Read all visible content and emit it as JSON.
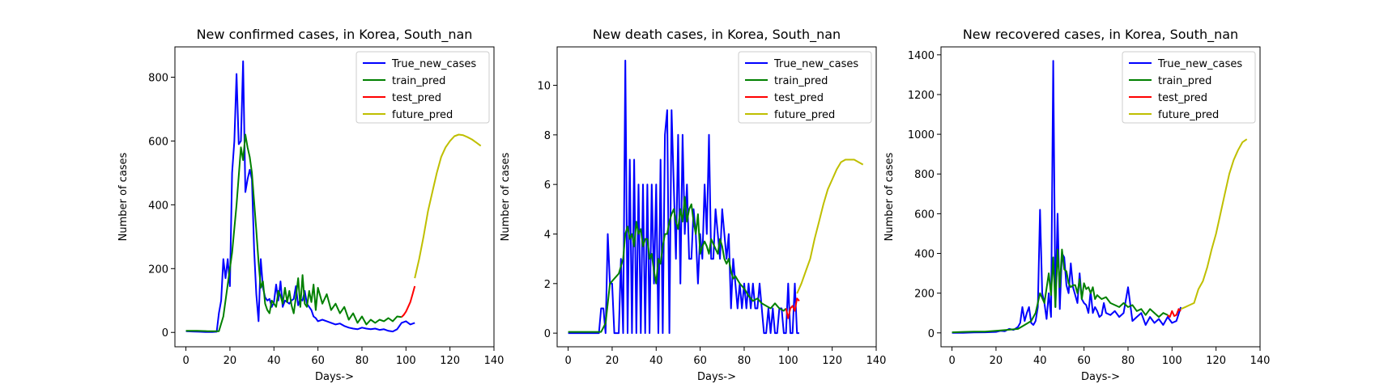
{
  "figure": {
    "background": "#ffffff"
  },
  "colors": {
    "True_new_cases": "#0000ff",
    "train_pred": "#008000",
    "test_pred": "#ff0000",
    "future_pred": "#bfbf00"
  },
  "legend_labels": [
    "True_new_cases",
    "train_pred",
    "test_pred",
    "future_pred"
  ],
  "chart_data": [
    {
      "type": "line",
      "title": "New confirmed cases, in Korea, South_nan",
      "xlabel": "Days->",
      "ylabel": "Number of cases",
      "xlim": [
        -5,
        140
      ],
      "ylim": [
        -45,
        895
      ],
      "xticks": [
        0,
        20,
        40,
        60,
        80,
        100,
        120,
        140
      ],
      "yticks": [
        0,
        200,
        400,
        600,
        800
      ],
      "legend_position": "upper right",
      "series": [
        {
          "name": "True_new_cases",
          "x": [
            0,
            3,
            6,
            9,
            12,
            14,
            15,
            16,
            17,
            18,
            19,
            20,
            21,
            22,
            23,
            24,
            25,
            26,
            27,
            28,
            29,
            30,
            31,
            32,
            33,
            34,
            35,
            36,
            37,
            38,
            39,
            40,
            41,
            42,
            43,
            44,
            45,
            46,
            47,
            48,
            49,
            50,
            51,
            52,
            53,
            54,
            55,
            56,
            57,
            58,
            59,
            60,
            62,
            64,
            66,
            68,
            70,
            72,
            74,
            76,
            78,
            80,
            82,
            84,
            86,
            88,
            90,
            92,
            94,
            96,
            98,
            100,
            102,
            104
          ],
          "y": [
            4,
            3,
            2,
            1,
            1,
            2,
            60,
            100,
            230,
            170,
            230,
            145,
            500,
            600,
            810,
            590,
            600,
            850,
            440,
            480,
            510,
            480,
            260,
            120,
            35,
            230,
            140,
            110,
            100,
            105,
            80,
            95,
            150,
            100,
            160,
            80,
            100,
            95,
            90,
            100,
            105,
            145,
            85,
            105,
            100,
            130,
            90,
            80,
            70,
            50,
            45,
            35,
            40,
            35,
            30,
            25,
            28,
            20,
            15,
            12,
            10,
            15,
            12,
            10,
            12,
            8,
            10,
            5,
            3,
            10,
            30,
            35,
            25,
            30
          ]
        },
        {
          "name": "train_pred",
          "x": [
            0,
            5,
            10,
            15,
            17,
            19,
            21,
            23,
            25,
            26,
            27,
            28,
            29,
            30,
            31,
            32,
            33,
            34,
            35,
            36,
            37,
            38,
            39,
            40,
            41,
            42,
            43,
            44,
            45,
            46,
            47,
            48,
            49,
            50,
            51,
            52,
            53,
            54,
            55,
            56,
            57,
            58,
            59,
            60,
            62,
            64,
            66,
            68,
            70,
            72,
            74,
            76,
            78,
            80,
            82,
            84,
            86,
            88,
            90,
            92,
            94,
            96,
            98
          ],
          "y": [
            5,
            5,
            4,
            4,
            50,
            150,
            250,
            400,
            580,
            540,
            620,
            580,
            550,
            500,
            410,
            320,
            220,
            140,
            160,
            90,
            70,
            60,
            100,
            90,
            80,
            130,
            115,
            90,
            140,
            95,
            130,
            85,
            60,
            110,
            170,
            80,
            180,
            90,
            80,
            130,
            95,
            150,
            70,
            140,
            90,
            120,
            70,
            90,
            60,
            80,
            40,
            60,
            30,
            50,
            25,
            40,
            30,
            40,
            35,
            45,
            35,
            50,
            48
          ]
        },
        {
          "name": "test_pred",
          "x": [
            98,
            99,
            100,
            101,
            102,
            103,
            104
          ],
          "y": [
            48,
            55,
            65,
            80,
            95,
            120,
            145
          ]
        },
        {
          "name": "future_pred",
          "x": [
            104,
            106,
            108,
            110,
            112,
            114,
            116,
            118,
            120,
            122,
            124,
            126,
            128,
            130,
            132,
            134
          ],
          "y": [
            170,
            230,
            300,
            380,
            440,
            500,
            550,
            580,
            600,
            615,
            620,
            618,
            612,
            605,
            595,
            585
          ]
        }
      ]
    },
    {
      "type": "line",
      "title": "New death cases, in Korea, South_nan",
      "xlabel": "Days->",
      "ylabel": "Number of cases",
      "xlim": [
        -5,
        140
      ],
      "ylim": [
        -0.55,
        11.55
      ],
      "xticks": [
        0,
        20,
        40,
        60,
        80,
        100,
        120,
        140
      ],
      "yticks": [
        0,
        2,
        4,
        6,
        8,
        10
      ],
      "legend_position": "upper right",
      "series": [
        {
          "name": "True_new_cases",
          "x": [
            0,
            5,
            10,
            14,
            15,
            16,
            17,
            18,
            19,
            20,
            21,
            22,
            23,
            24,
            25,
            26,
            27,
            28,
            29,
            30,
            31,
            32,
            33,
            34,
            35,
            36,
            37,
            38,
            39,
            40,
            41,
            42,
            43,
            44,
            45,
            46,
            47,
            48,
            49,
            50,
            51,
            52,
            53,
            54,
            55,
            56,
            57,
            58,
            59,
            60,
            61,
            62,
            63,
            64,
            65,
            66,
            67,
            68,
            69,
            70,
            71,
            72,
            73,
            74,
            75,
            76,
            77,
            78,
            79,
            80,
            81,
            82,
            83,
            84,
            85,
            86,
            87,
            88,
            89,
            90,
            91,
            92,
            93,
            94,
            95,
            96,
            97,
            98,
            99,
            100,
            101,
            102,
            103,
            104,
            105
          ],
          "y": [
            0,
            0,
            0,
            0,
            1,
            1,
            0,
            4,
            2,
            2,
            0,
            0,
            0,
            3,
            0,
            11,
            0,
            7,
            0,
            7,
            0,
            6,
            0,
            6,
            0,
            6,
            0,
            6,
            2,
            6,
            0,
            7,
            0,
            8,
            9,
            0,
            9,
            6,
            3,
            8,
            2,
            8,
            4,
            6,
            3,
            3,
            5,
            4,
            2,
            4,
            3,
            6,
            4,
            8,
            3,
            3,
            5,
            4,
            3,
            5,
            4,
            3,
            4,
            1,
            3,
            2,
            1,
            2,
            1,
            2,
            1,
            2,
            1,
            2,
            1,
            1,
            2,
            1,
            0,
            0,
            1,
            0,
            1,
            0,
            0,
            1,
            1,
            0,
            0,
            2,
            0,
            0,
            2,
            0,
            0
          ]
        },
        {
          "name": "train_pred",
          "x": [
            0,
            5,
            10,
            15,
            17,
            19,
            21,
            23,
            25,
            26,
            27,
            28,
            29,
            30,
            31,
            32,
            33,
            34,
            35,
            36,
            37,
            38,
            39,
            40,
            41,
            42,
            43,
            44,
            45,
            46,
            47,
            48,
            49,
            50,
            51,
            52,
            53,
            54,
            55,
            56,
            57,
            58,
            59,
            60,
            61,
            62,
            63,
            64,
            65,
            66,
            67,
            68,
            69,
            70,
            71,
            72,
            73,
            74,
            75,
            76,
            78,
            80,
            82,
            84,
            86,
            88,
            90,
            92,
            94,
            96,
            98,
            99
          ],
          "y": [
            0.05,
            0.05,
            0.05,
            0.05,
            0.4,
            2,
            2.2,
            2.4,
            3,
            4,
            4.3,
            3.8,
            4,
            3.5,
            4.5,
            4,
            4.2,
            3.5,
            3.8,
            3.8,
            3,
            3.2,
            2.5,
            2,
            3,
            2.8,
            3.5,
            4,
            4,
            4.5,
            4.8,
            5,
            4.5,
            4.2,
            5,
            4.5,
            5.5,
            4.5,
            5,
            5.2,
            4.5,
            4,
            4.8,
            3.2,
            3.5,
            3.7,
            3.5,
            3.2,
            3.8,
            3.6,
            3.4,
            3.2,
            3.8,
            3.5,
            3,
            2.8,
            3,
            2.5,
            2.2,
            2.3,
            2,
            1.8,
            1.5,
            1.3,
            1.4,
            1.2,
            1.1,
            1,
            1.2,
            1,
            0.9,
            1
          ]
        },
        {
          "name": "test_pred",
          "x": [
            99,
            100,
            101,
            102,
            103,
            104,
            105
          ],
          "y": [
            1,
            0.6,
            1,
            1.1,
            0.9,
            1.4,
            1.3
          ]
        },
        {
          "name": "future_pred",
          "x": [
            104,
            106,
            108,
            110,
            112,
            114,
            116,
            118,
            120,
            122,
            124,
            126,
            128,
            130,
            132,
            134
          ],
          "y": [
            1.6,
            2,
            2.5,
            3,
            3.8,
            4.5,
            5.2,
            5.8,
            6.2,
            6.6,
            6.9,
            7,
            7,
            7,
            6.9,
            6.8
          ]
        }
      ]
    },
    {
      "type": "line",
      "title": "New recovered cases, in Korea, South_nan",
      "xlabel": "Days->",
      "ylabel": "Number of cases",
      "xlim": [
        -5,
        140
      ],
      "ylim": [
        -70,
        1440
      ],
      "xticks": [
        0,
        20,
        40,
        60,
        80,
        100,
        120,
        140
      ],
      "yticks": [
        0,
        200,
        400,
        600,
        800,
        1000,
        1200,
        1400
      ],
      "legend_position": "upper right",
      "series": [
        {
          "name": "True_new_cases",
          "x": [
            0,
            5,
            10,
            15,
            20,
            22,
            24,
            26,
            28,
            30,
            31,
            32,
            33,
            34,
            35,
            36,
            37,
            38,
            39,
            40,
            41,
            42,
            43,
            44,
            45,
            46,
            47,
            48,
            49,
            50,
            51,
            52,
            53,
            54,
            55,
            56,
            57,
            58,
            59,
            60,
            61,
            62,
            63,
            64,
            65,
            66,
            67,
            68,
            69,
            70,
            72,
            74,
            76,
            78,
            80,
            82,
            84,
            86,
            88,
            90,
            92,
            94,
            96,
            98,
            100,
            102,
            104
          ],
          "y": [
            0,
            0,
            2,
            3,
            5,
            10,
            8,
            20,
            15,
            30,
            50,
            130,
            60,
            100,
            130,
            50,
            40,
            60,
            130,
            620,
            200,
            150,
            70,
            200,
            80,
            1370,
            130,
            600,
            120,
            400,
            380,
            240,
            200,
            350,
            230,
            190,
            150,
            300,
            170,
            150,
            140,
            100,
            210,
            100,
            130,
            110,
            80,
            90,
            150,
            100,
            90,
            110,
            80,
            100,
            230,
            60,
            80,
            100,
            40,
            80,
            50,
            70,
            40,
            80,
            50,
            60,
            130
          ]
        },
        {
          "name": "train_pred",
          "x": [
            0,
            5,
            10,
            15,
            20,
            25,
            30,
            33,
            36,
            38,
            40,
            42,
            44,
            45,
            46,
            47,
            48,
            49,
            50,
            51,
            52,
            53,
            54,
            55,
            56,
            57,
            58,
            59,
            60,
            61,
            62,
            63,
            64,
            65,
            66,
            67,
            68,
            70,
            72,
            74,
            76,
            78,
            80,
            82,
            84,
            86,
            88,
            90,
            92,
            94,
            96,
            98
          ],
          "y": [
            3,
            5,
            6,
            6,
            10,
            15,
            20,
            40,
            60,
            100,
            200,
            150,
            300,
            190,
            380,
            130,
            420,
            230,
            420,
            320,
            310,
            250,
            230,
            240,
            240,
            200,
            270,
            170,
            250,
            220,
            230,
            200,
            230,
            170,
            190,
            180,
            170,
            180,
            150,
            140,
            130,
            150,
            130,
            140,
            110,
            120,
            90,
            120,
            100,
            80,
            100,
            90
          ]
        },
        {
          "name": "test_pred",
          "x": [
            98,
            99,
            100,
            101,
            102,
            103,
            104
          ],
          "y": [
            90,
            80,
            110,
            85,
            90,
            120,
            110
          ]
        },
        {
          "name": "future_pred",
          "x": [
            104,
            106,
            108,
            110,
            112,
            114,
            116,
            118,
            120,
            122,
            124,
            126,
            128,
            130,
            132,
            134
          ],
          "y": [
            120,
            130,
            140,
            150,
            220,
            260,
            330,
            420,
            500,
            600,
            700,
            800,
            870,
            920,
            960,
            975
          ]
        }
      ]
    }
  ]
}
